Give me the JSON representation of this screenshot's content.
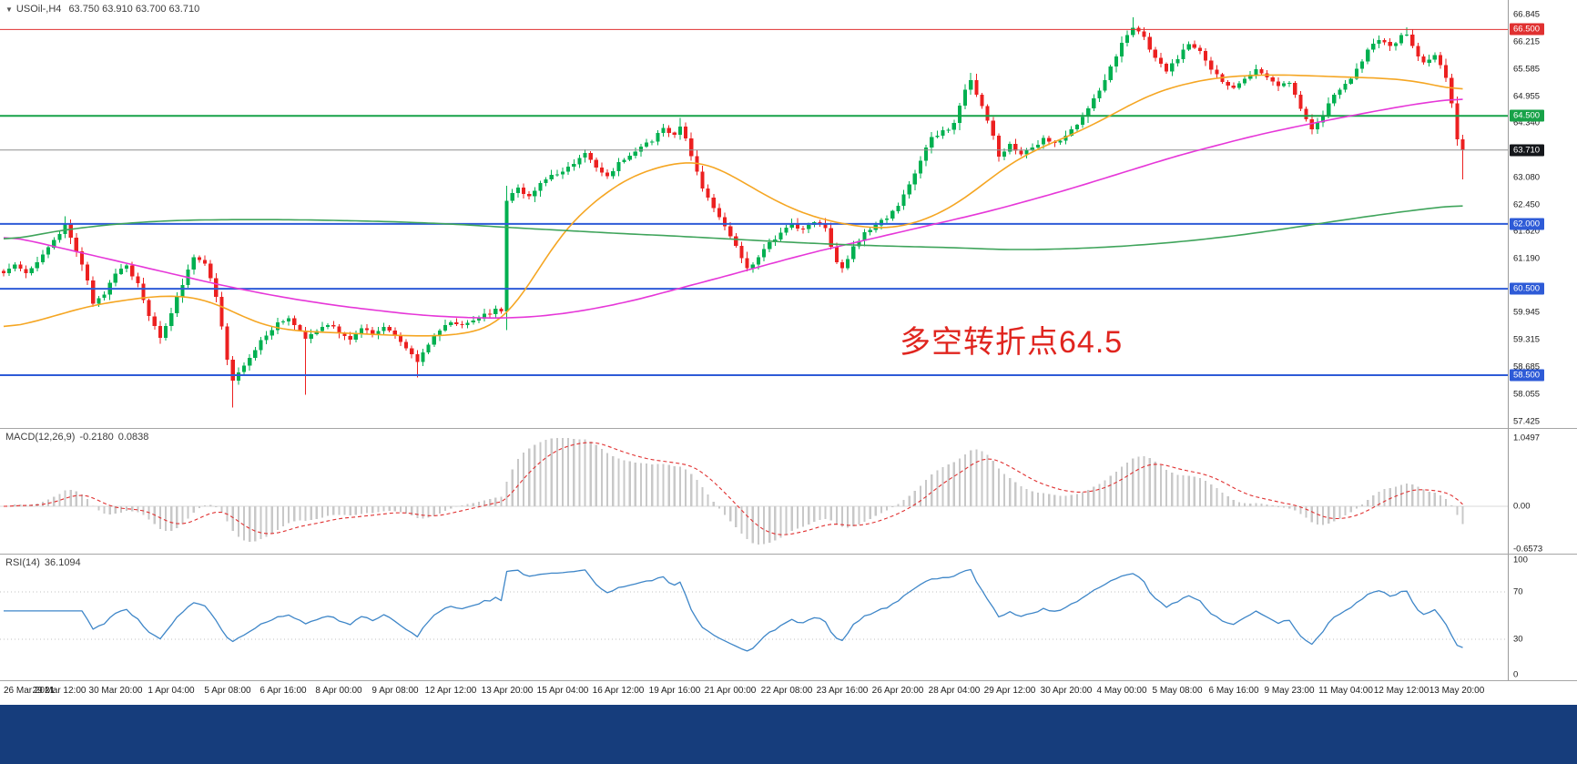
{
  "header": {
    "expander_icon": "▼",
    "symbol": "USOil-,H4",
    "ohlc": "63.750 63.910 63.700 63.710"
  },
  "annotation": {
    "text": "多空转折点64.5",
    "color": "#E0251F"
  },
  "colors": {
    "background": "#FFFFFF",
    "bottom_bar": "#163D7C",
    "divider": "#A6A6A6",
    "axis_line": "#9A9A9A",
    "current_price_line": "#8F8F8F",
    "current_price_badge": "#15171B"
  },
  "x_axis_labels": [
    "26 Mar 2021",
    "29 Mar 12:00",
    "30 Mar 20:00",
    "1 Apr 04:00",
    "5 Apr 08:00",
    "6 Apr 16:00",
    "8 Apr 00:00",
    "9 Apr 08:00",
    "12 Apr 12:00",
    "13 Apr 20:00",
    "15 Apr 04:00",
    "16 Apr 12:00",
    "19 Apr 16:00",
    "21 Apr 00:00",
    "22 Apr 08:00",
    "23 Apr 16:00",
    "26 Apr 20:00",
    "28 Apr 04:00",
    "29 Apr 12:00",
    "30 Apr 20:00",
    "4 May 00:00",
    "5 May 08:00",
    "6 May 16:00",
    "9 May 23:00",
    "11 May 04:00",
    "12 May 12:00",
    "13 May 20:00"
  ],
  "chart_data": [
    {
      "id": "price",
      "type": "candlestick",
      "symbol": "USOil-",
      "timeframe": "H4",
      "title": "USOil-,H4",
      "ohlc_display": {
        "open": "63.750",
        "high": "63.910",
        "low": "63.700",
        "close": "63.710"
      },
      "num_candles": 262,
      "up_color": "#00B050",
      "down_color": "#EC2020",
      "ylim": [
        57.2,
        67.2
      ],
      "y_axis_ticks": [
        "66.845",
        "66.215",
        "65.585",
        "64.955",
        "64.340",
        "63.710",
        "63.080",
        "62.450",
        "61.820",
        "61.190",
        "60.560",
        "59.945",
        "59.315",
        "58.685",
        "58.055",
        "57.425"
      ],
      "close_anchors": [
        [
          0,
          60.85
        ],
        [
          2,
          61.1
        ],
        [
          4,
          60.9
        ],
        [
          6,
          61.15
        ],
        [
          8,
          61.45
        ],
        [
          10,
          61.75
        ],
        [
          11,
          62.0
        ],
        [
          13,
          61.4
        ],
        [
          15,
          60.7
        ],
        [
          16,
          60.15
        ],
        [
          18,
          60.4
        ],
        [
          20,
          60.85
        ],
        [
          22,
          61.05
        ],
        [
          24,
          60.6
        ],
        [
          26,
          59.9
        ],
        [
          28,
          59.4
        ],
        [
          30,
          59.95
        ],
        [
          32,
          60.6
        ],
        [
          34,
          61.25
        ],
        [
          36,
          61.1
        ],
        [
          38,
          60.35
        ],
        [
          40,
          58.9
        ],
        [
          41,
          58.4
        ],
        [
          43,
          58.75
        ],
        [
          45,
          59.1
        ],
        [
          47,
          59.45
        ],
        [
          49,
          59.7
        ],
        [
          51,
          59.85
        ],
        [
          53,
          59.5
        ],
        [
          54,
          59.3
        ],
        [
          56,
          59.55
        ],
        [
          58,
          59.7
        ],
        [
          60,
          59.5
        ],
        [
          62,
          59.35
        ],
        [
          64,
          59.55
        ],
        [
          66,
          59.45
        ],
        [
          68,
          59.6
        ],
        [
          70,
          59.4
        ],
        [
          72,
          59.1
        ],
        [
          74,
          58.8
        ],
        [
          76,
          59.2
        ],
        [
          78,
          59.55
        ],
        [
          80,
          59.75
        ],
        [
          82,
          59.65
        ],
        [
          84,
          59.8
        ],
        [
          86,
          59.9
        ],
        [
          88,
          60.0
        ],
        [
          89,
          59.95
        ],
        [
          90,
          62.55
        ],
        [
          92,
          62.8
        ],
        [
          94,
          62.65
        ],
        [
          96,
          62.95
        ],
        [
          98,
          63.15
        ],
        [
          100,
          63.2
        ],
        [
          102,
          63.4
        ],
        [
          104,
          63.6
        ],
        [
          106,
          63.35
        ],
        [
          108,
          63.1
        ],
        [
          110,
          63.4
        ],
        [
          112,
          63.55
        ],
        [
          114,
          63.75
        ],
        [
          116,
          63.95
        ],
        [
          118,
          64.2
        ],
        [
          120,
          64.1
        ],
        [
          121,
          64.3
        ],
        [
          123,
          63.6
        ],
        [
          125,
          62.85
        ],
        [
          127,
          62.4
        ],
        [
          129,
          61.9
        ],
        [
          131,
          61.45
        ],
        [
          133,
          60.95
        ],
        [
          135,
          61.25
        ],
        [
          137,
          61.55
        ],
        [
          139,
          61.8
        ],
        [
          141,
          62.0
        ],
        [
          143,
          61.85
        ],
        [
          145,
          62.05
        ],
        [
          147,
          61.9
        ],
        [
          149,
          61.1
        ],
        [
          150,
          60.95
        ],
        [
          152,
          61.45
        ],
        [
          154,
          61.8
        ],
        [
          156,
          61.95
        ],
        [
          158,
          62.15
        ],
        [
          160,
          62.4
        ],
        [
          162,
          62.9
        ],
        [
          164,
          63.5
        ],
        [
          166,
          64.0
        ],
        [
          168,
          64.15
        ],
        [
          170,
          64.3
        ],
        [
          172,
          65.1
        ],
        [
          173,
          65.35
        ],
        [
          175,
          64.7
        ],
        [
          177,
          64.0
        ],
        [
          178,
          63.55
        ],
        [
          180,
          63.85
        ],
        [
          182,
          63.6
        ],
        [
          184,
          63.8
        ],
        [
          186,
          63.95
        ],
        [
          188,
          63.85
        ],
        [
          190,
          64.05
        ],
        [
          192,
          64.3
        ],
        [
          194,
          64.7
        ],
        [
          196,
          65.1
        ],
        [
          198,
          65.6
        ],
        [
          200,
          66.15
        ],
        [
          202,
          66.55
        ],
        [
          204,
          66.3
        ],
        [
          206,
          65.85
        ],
        [
          208,
          65.55
        ],
        [
          210,
          65.85
        ],
        [
          212,
          66.2
        ],
        [
          214,
          66.0
        ],
        [
          216,
          65.6
        ],
        [
          218,
          65.3
        ],
        [
          220,
          65.15
        ],
        [
          222,
          65.4
        ],
        [
          224,
          65.55
        ],
        [
          226,
          65.35
        ],
        [
          228,
          65.15
        ],
        [
          230,
          65.3
        ],
        [
          232,
          64.7
        ],
        [
          234,
          64.2
        ],
        [
          236,
          64.55
        ],
        [
          238,
          64.95
        ],
        [
          240,
          65.2
        ],
        [
          242,
          65.6
        ],
        [
          244,
          66.0
        ],
        [
          246,
          66.25
        ],
        [
          248,
          66.1
        ],
        [
          250,
          66.35
        ],
        [
          251,
          66.4
        ],
        [
          252,
          66.1
        ],
        [
          254,
          65.7
        ],
        [
          256,
          65.9
        ],
        [
          258,
          65.4
        ],
        [
          259,
          64.8
        ],
        [
          260,
          63.95
        ],
        [
          261,
          63.71
        ]
      ],
      "wick_overrides": {
        "11": {
          "high": 62.18
        },
        "41": {
          "low": 57.75
        },
        "54": {
          "low": 58.05
        },
        "74": {
          "low": 58.45
        },
        "121": {
          "high": 64.45
        },
        "173": {
          "high": 65.5
        },
        "202": {
          "high": 66.78
        },
        "251": {
          "high": 66.55
        },
        "261": {
          "low": 63.03
        }
      },
      "hlines": [
        {
          "price": 66.5,
          "label": "66.500",
          "color": "#E03030",
          "width": 1
        },
        {
          "price": 64.5,
          "label": "64.500",
          "color": "#17A248",
          "width": 2
        },
        {
          "price": 62.0,
          "label": "62.000",
          "color": "#2E5BD7",
          "width": 2
        },
        {
          "price": 60.5,
          "label": "60.500",
          "color": "#2E5BD7",
          "width": 2
        },
        {
          "price": 58.5,
          "label": "58.500",
          "color": "#2E5BD7",
          "width": 2
        }
      ],
      "current_price": {
        "value": 63.71,
        "label": "63.710"
      },
      "ma_lines": [
        {
          "name": "ma-fast-orange",
          "color": "#F5A623",
          "anchors": [
            [
              0,
              59.55
            ],
            [
              10,
              59.9
            ],
            [
              15,
              60.1
            ],
            [
              20,
              60.2
            ],
            [
              25,
              60.3
            ],
            [
              30,
              60.35
            ],
            [
              35,
              60.3
            ],
            [
              40,
              60.05
            ],
            [
              45,
              59.7
            ],
            [
              50,
              59.55
            ],
            [
              55,
              59.5
            ],
            [
              60,
              59.48
            ],
            [
              65,
              59.45
            ],
            [
              70,
              59.42
            ],
            [
              75,
              59.4
            ],
            [
              80,
              59.42
            ],
            [
              85,
              59.5
            ],
            [
              90,
              59.8
            ],
            [
              95,
              60.8
            ],
            [
              100,
              61.85
            ],
            [
              105,
              62.45
            ],
            [
              110,
              62.95
            ],
            [
              115,
              63.25
            ],
            [
              120,
              63.4
            ],
            [
              123,
              63.48
            ],
            [
              126,
              63.4
            ],
            [
              130,
              63.15
            ],
            [
              135,
              62.75
            ],
            [
              140,
              62.4
            ],
            [
              145,
              62.15
            ],
            [
              150,
              62.0
            ],
            [
              155,
              61.9
            ],
            [
              160,
              61.9
            ],
            [
              165,
              62.1
            ],
            [
              170,
              62.4
            ],
            [
              175,
              62.9
            ],
            [
              180,
              63.4
            ],
            [
              185,
              63.75
            ],
            [
              190,
              64.0
            ],
            [
              195,
              64.3
            ],
            [
              200,
              64.65
            ],
            [
              205,
              65.0
            ],
            [
              210,
              65.2
            ],
            [
              215,
              65.35
            ],
            [
              220,
              65.42
            ],
            [
              225,
              65.45
            ],
            [
              230,
              65.45
            ],
            [
              235,
              65.42
            ],
            [
              240,
              65.4
            ],
            [
              245,
              65.38
            ],
            [
              250,
              65.35
            ],
            [
              255,
              65.25
            ],
            [
              261,
              65.05
            ]
          ]
        },
        {
          "name": "ma-mid-magenta",
          "color": "#E637D8",
          "anchors": [
            [
              0,
              61.75
            ],
            [
              10,
              61.45
            ],
            [
              20,
              61.15
            ],
            [
              30,
              60.85
            ],
            [
              40,
              60.55
            ],
            [
              50,
              60.3
            ],
            [
              60,
              60.1
            ],
            [
              70,
              59.95
            ],
            [
              75,
              59.88
            ],
            [
              80,
              59.85
            ],
            [
              85,
              59.82
            ],
            [
              90,
              59.82
            ],
            [
              95,
              59.85
            ],
            [
              100,
              59.92
            ],
            [
              105,
              60.02
            ],
            [
              110,
              60.15
            ],
            [
              115,
              60.3
            ],
            [
              120,
              60.48
            ],
            [
              125,
              60.65
            ],
            [
              130,
              60.82
            ],
            [
              135,
              61.0
            ],
            [
              140,
              61.18
            ],
            [
              145,
              61.35
            ],
            [
              150,
              61.5
            ],
            [
              155,
              61.65
            ],
            [
              160,
              61.8
            ],
            [
              165,
              61.95
            ],
            [
              170,
              62.1
            ],
            [
              175,
              62.25
            ],
            [
              180,
              62.42
            ],
            [
              185,
              62.6
            ],
            [
              190,
              62.78
            ],
            [
              195,
              62.98
            ],
            [
              200,
              63.18
            ],
            [
              205,
              63.38
            ],
            [
              210,
              63.58
            ],
            [
              215,
              63.75
            ],
            [
              220,
              63.92
            ],
            [
              225,
              64.08
            ],
            [
              230,
              64.22
            ],
            [
              235,
              64.35
            ],
            [
              240,
              64.48
            ],
            [
              245,
              64.6
            ],
            [
              250,
              64.72
            ],
            [
              255,
              64.82
            ],
            [
              261,
              64.92
            ]
          ]
        },
        {
          "name": "ma-slow-green",
          "color": "#3FA45B",
          "anchors": [
            [
              0,
              61.6
            ],
            [
              10,
              61.85
            ],
            [
              20,
              62.0
            ],
            [
              30,
              62.08
            ],
            [
              40,
              62.1
            ],
            [
              50,
              62.1
            ],
            [
              60,
              62.08
            ],
            [
              70,
              62.05
            ],
            [
              80,
              62.0
            ],
            [
              90,
              61.92
            ],
            [
              100,
              61.85
            ],
            [
              110,
              61.78
            ],
            [
              120,
              61.72
            ],
            [
              130,
              61.65
            ],
            [
              140,
              61.58
            ],
            [
              150,
              61.52
            ],
            [
              160,
              61.48
            ],
            [
              170,
              61.45
            ],
            [
              180,
              61.4
            ],
            [
              190,
              61.42
            ],
            [
              200,
              61.48
            ],
            [
              210,
              61.58
            ],
            [
              220,
              61.72
            ],
            [
              230,
              61.9
            ],
            [
              240,
              62.1
            ],
            [
              250,
              62.28
            ],
            [
              261,
              62.45
            ]
          ]
        }
      ]
    },
    {
      "id": "macd",
      "type": "bar",
      "title": "MACD(12,26,9)",
      "values_shown": [
        "-0.2180",
        "0.0838"
      ],
      "axis_ticks": [
        "1.0497",
        "0.00",
        "-0.6573"
      ],
      "axis_tick_values": [
        1.0497,
        0.0,
        -0.6573
      ],
      "params": {
        "fast": 12,
        "slow": 26,
        "signal": 9
      },
      "histogram_color": "#C8C8C8",
      "signal_color": "#E03030",
      "signal_style": "dashed"
    },
    {
      "id": "rsi",
      "type": "line",
      "title": "RSI(14)",
      "value_shown": "36.1094",
      "period": 14,
      "levels": [
        70,
        30
      ],
      "axis_ticks": [
        "100",
        "70",
        "30",
        "0"
      ],
      "axis_tick_values": [
        100,
        70,
        30,
        0
      ],
      "line_color": "#3E86C8"
    }
  ]
}
